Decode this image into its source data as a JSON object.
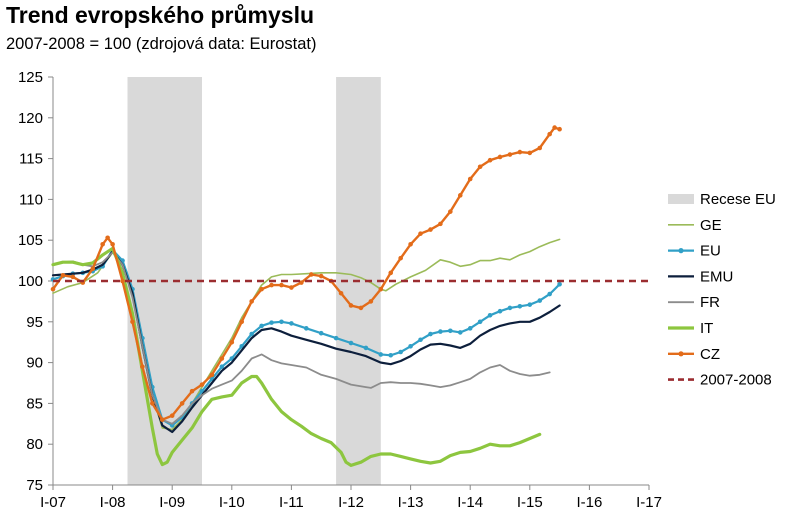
{
  "chart_data": {
    "type": "line",
    "title": "Trend evropského průmyslu",
    "subtitle": "2007-2008 = 100 (zdrojová data: Eurostat)",
    "xlabel": "",
    "ylabel": "",
    "ylim": [
      75,
      125
    ],
    "yticks": [
      75,
      80,
      85,
      90,
      95,
      100,
      105,
      110,
      115,
      120,
      125
    ],
    "xlim": [
      0,
      120
    ],
    "xticks": [
      {
        "x": 0,
        "label": "I-07"
      },
      {
        "x": 12,
        "label": "I-08"
      },
      {
        "x": 24,
        "label": "I-09"
      },
      {
        "x": 36,
        "label": "I-10"
      },
      {
        "x": 48,
        "label": "I-11"
      },
      {
        "x": 60,
        "label": "I-12"
      },
      {
        "x": 72,
        "label": "I-13"
      },
      {
        "x": 84,
        "label": "I-14"
      },
      {
        "x": 96,
        "label": "I-15"
      },
      {
        "x": 108,
        "label": "I-16"
      },
      {
        "x": 120,
        "label": "I-17"
      }
    ],
    "x_units": "months since I-07",
    "legend_position": "right",
    "grid": false,
    "recessions": {
      "name": "Recese EU",
      "color": "#d9d9d9",
      "periods": [
        [
          15,
          30
        ],
        [
          57,
          66
        ]
      ]
    },
    "reference": {
      "name": "2007-2008",
      "value": 100,
      "color": "#9b2d30"
    },
    "series": [
      {
        "name": "GE",
        "color": "#9bbb59",
        "width": 1.6,
        "marker": false,
        "points": [
          [
            0,
            98.5
          ],
          [
            3,
            99.3
          ],
          [
            6,
            99.8
          ],
          [
            9,
            101
          ],
          [
            12,
            103.5
          ],
          [
            14,
            102.5
          ],
          [
            16,
            98
          ],
          [
            18,
            92
          ],
          [
            20,
            86
          ],
          [
            22,
            82
          ],
          [
            24,
            81.8
          ],
          [
            26,
            83
          ],
          [
            28,
            85
          ],
          [
            30,
            87
          ],
          [
            32,
            89
          ],
          [
            34,
            91
          ],
          [
            36,
            93
          ],
          [
            38,
            95.5
          ],
          [
            40,
            97.5
          ],
          [
            42,
            99.5
          ],
          [
            44,
            100.5
          ],
          [
            46,
            100.8
          ],
          [
            48,
            100.8
          ],
          [
            51,
            100.9
          ],
          [
            54,
            101
          ],
          [
            57,
            101
          ],
          [
            60,
            100.8
          ],
          [
            62,
            100.4
          ],
          [
            64,
            99.8
          ],
          [
            66,
            99
          ],
          [
            67,
            98.8
          ],
          [
            69,
            99.6
          ],
          [
            72,
            100.5
          ],
          [
            75,
            101.3
          ],
          [
            78,
            102.6
          ],
          [
            80,
            102.3
          ],
          [
            82,
            101.8
          ],
          [
            84,
            102
          ],
          [
            86,
            102.5
          ],
          [
            88,
            102.5
          ],
          [
            90,
            102.8
          ],
          [
            92,
            102.6
          ],
          [
            94,
            103.2
          ],
          [
            96,
            103.6
          ],
          [
            98,
            104.2
          ],
          [
            100,
            104.7
          ],
          [
            102,
            105.1
          ]
        ]
      },
      {
        "name": "EU",
        "color": "#31a0c7",
        "width": 2.2,
        "marker": true,
        "points": [
          [
            0,
            100.2
          ],
          [
            2,
            100.6
          ],
          [
            4,
            100.9
          ],
          [
            6,
            101
          ],
          [
            8,
            101.2
          ],
          [
            10,
            101.8
          ],
          [
            12,
            103.8
          ],
          [
            14,
            102.5
          ],
          [
            16,
            99
          ],
          [
            18,
            93
          ],
          [
            20,
            87
          ],
          [
            22,
            83
          ],
          [
            24,
            82.3
          ],
          [
            26,
            83.3
          ],
          [
            28,
            85
          ],
          [
            30,
            86.5
          ],
          [
            32,
            88
          ],
          [
            34,
            89.5
          ],
          [
            36,
            90.5
          ],
          [
            38,
            92
          ],
          [
            40,
            93.5
          ],
          [
            42,
            94.5
          ],
          [
            44,
            94.9
          ],
          [
            46,
            95
          ],
          [
            48,
            94.8
          ],
          [
            51,
            94.2
          ],
          [
            54,
            93.6
          ],
          [
            57,
            93
          ],
          [
            60,
            92.4
          ],
          [
            63,
            91.8
          ],
          [
            66,
            91
          ],
          [
            68,
            90.9
          ],
          [
            70,
            91.3
          ],
          [
            72,
            92
          ],
          [
            74,
            92.8
          ],
          [
            76,
            93.5
          ],
          [
            78,
            93.8
          ],
          [
            80,
            93.9
          ],
          [
            82,
            93.7
          ],
          [
            84,
            94.2
          ],
          [
            86,
            95
          ],
          [
            88,
            95.8
          ],
          [
            90,
            96.3
          ],
          [
            92,
            96.7
          ],
          [
            94,
            96.9
          ],
          [
            96,
            97.1
          ],
          [
            98,
            97.6
          ],
          [
            100,
            98.4
          ],
          [
            102,
            99.6
          ]
        ]
      },
      {
        "name": "EMU",
        "color": "#0d1f3c",
        "width": 2.2,
        "marker": false,
        "points": [
          [
            0,
            100.7
          ],
          [
            2,
            100.8
          ],
          [
            4,
            100.9
          ],
          [
            6,
            101
          ],
          [
            8,
            101.4
          ],
          [
            10,
            102
          ],
          [
            12,
            103.6
          ],
          [
            14,
            102
          ],
          [
            16,
            98.5
          ],
          [
            18,
            92
          ],
          [
            20,
            86
          ],
          [
            22,
            82.3
          ],
          [
            24,
            81.5
          ],
          [
            26,
            82.8
          ],
          [
            28,
            84.5
          ],
          [
            30,
            86
          ],
          [
            32,
            87.5
          ],
          [
            34,
            89
          ],
          [
            36,
            90
          ],
          [
            38,
            91.5
          ],
          [
            40,
            93
          ],
          [
            42,
            94
          ],
          [
            44,
            94.2
          ],
          [
            46,
            93.8
          ],
          [
            48,
            93.3
          ],
          [
            51,
            92.8
          ],
          [
            54,
            92.3
          ],
          [
            57,
            91.7
          ],
          [
            60,
            91.3
          ],
          [
            63,
            90.8
          ],
          [
            66,
            90
          ],
          [
            68,
            89.8
          ],
          [
            70,
            90.2
          ],
          [
            72,
            90.8
          ],
          [
            74,
            91.6
          ],
          [
            76,
            92.2
          ],
          [
            78,
            92.3
          ],
          [
            80,
            92.1
          ],
          [
            82,
            91.8
          ],
          [
            84,
            92.3
          ],
          [
            86,
            93.3
          ],
          [
            88,
            94
          ],
          [
            90,
            94.5
          ],
          [
            92,
            94.8
          ],
          [
            94,
            95
          ],
          [
            96,
            95
          ],
          [
            98,
            95.5
          ],
          [
            100,
            96.2
          ],
          [
            102,
            97
          ]
        ]
      },
      {
        "name": "FR",
        "color": "#8c8c8c",
        "width": 1.8,
        "marker": false,
        "points": [
          [
            0,
            102
          ],
          [
            2,
            102.3
          ],
          [
            4,
            102.4
          ],
          [
            6,
            102
          ],
          [
            8,
            101.8
          ],
          [
            10,
            102.3
          ],
          [
            12,
            103.5
          ],
          [
            14,
            102
          ],
          [
            16,
            98
          ],
          [
            18,
            92
          ],
          [
            20,
            86
          ],
          [
            22,
            83
          ],
          [
            24,
            82.5
          ],
          [
            26,
            83.5
          ],
          [
            28,
            85
          ],
          [
            30,
            86
          ],
          [
            32,
            86.8
          ],
          [
            34,
            87.3
          ],
          [
            36,
            87.8
          ],
          [
            38,
            89
          ],
          [
            40,
            90.5
          ],
          [
            42,
            91
          ],
          [
            44,
            90.3
          ],
          [
            46,
            89.9
          ],
          [
            48,
            89.7
          ],
          [
            51,
            89.4
          ],
          [
            54,
            88.5
          ],
          [
            57,
            88
          ],
          [
            60,
            87.3
          ],
          [
            63,
            87
          ],
          [
            64,
            86.9
          ],
          [
            66,
            87.5
          ],
          [
            68,
            87.6
          ],
          [
            70,
            87.5
          ],
          [
            72,
            87.5
          ],
          [
            74,
            87.4
          ],
          [
            76,
            87.2
          ],
          [
            78,
            87
          ],
          [
            80,
            87.2
          ],
          [
            82,
            87.6
          ],
          [
            84,
            88
          ],
          [
            86,
            88.8
          ],
          [
            88,
            89.4
          ],
          [
            90,
            89.7
          ],
          [
            92,
            89
          ],
          [
            94,
            88.6
          ],
          [
            96,
            88.4
          ],
          [
            98,
            88.5
          ],
          [
            100,
            88.8
          ]
        ]
      },
      {
        "name": "IT",
        "color": "#8dc63f",
        "width": 3.2,
        "marker": false,
        "points": [
          [
            0,
            102
          ],
          [
            2,
            102.3
          ],
          [
            4,
            102.3
          ],
          [
            6,
            102
          ],
          [
            8,
            102.2
          ],
          [
            10,
            103.2
          ],
          [
            12,
            104
          ],
          [
            14,
            101
          ],
          [
            16,
            96
          ],
          [
            18,
            89
          ],
          [
            20,
            82
          ],
          [
            21,
            78.8
          ],
          [
            22,
            77.5
          ],
          [
            23,
            77.8
          ],
          [
            24,
            79
          ],
          [
            26,
            80.5
          ],
          [
            28,
            82
          ],
          [
            30,
            84
          ],
          [
            32,
            85.5
          ],
          [
            34,
            85.8
          ],
          [
            36,
            86
          ],
          [
            38,
            87.5
          ],
          [
            40,
            88.3
          ],
          [
            41,
            88.3
          ],
          [
            42,
            87.5
          ],
          [
            44,
            85.5
          ],
          [
            46,
            84
          ],
          [
            48,
            83
          ],
          [
            50,
            82.2
          ],
          [
            52,
            81.3
          ],
          [
            54,
            80.7
          ],
          [
            56,
            80.2
          ],
          [
            58,
            79
          ],
          [
            59,
            77.8
          ],
          [
            60,
            77.4
          ],
          [
            62,
            77.8
          ],
          [
            64,
            78.5
          ],
          [
            66,
            78.8
          ],
          [
            68,
            78.8
          ],
          [
            70,
            78.5
          ],
          [
            72,
            78.2
          ],
          [
            74,
            77.9
          ],
          [
            76,
            77.7
          ],
          [
            78,
            77.9
          ],
          [
            80,
            78.6
          ],
          [
            82,
            79
          ],
          [
            84,
            79.1
          ],
          [
            86,
            79.5
          ],
          [
            88,
            80
          ],
          [
            90,
            79.8
          ],
          [
            92,
            79.8
          ],
          [
            94,
            80.2
          ],
          [
            96,
            80.7
          ],
          [
            98,
            81.2
          ]
        ]
      },
      {
        "name": "CZ",
        "color": "#e36c1a",
        "width": 2.4,
        "marker": true,
        "points": [
          [
            0,
            99
          ],
          [
            2,
            100.7
          ],
          [
            4,
            100.5
          ],
          [
            6,
            99.8
          ],
          [
            8,
            101.5
          ],
          [
            10,
            104.5
          ],
          [
            11,
            105.3
          ],
          [
            12,
            104.5
          ],
          [
            14,
            100
          ],
          [
            16,
            95
          ],
          [
            18,
            89.5
          ],
          [
            20,
            85
          ],
          [
            22,
            83
          ],
          [
            24,
            83.5
          ],
          [
            26,
            85
          ],
          [
            28,
            86.5
          ],
          [
            30,
            87.3
          ],
          [
            32,
            88.5
          ],
          [
            34,
            90.5
          ],
          [
            36,
            92.5
          ],
          [
            38,
            95
          ],
          [
            40,
            97.5
          ],
          [
            42,
            99
          ],
          [
            44,
            99.5
          ],
          [
            46,
            99.5
          ],
          [
            48,
            99.2
          ],
          [
            50,
            99.8
          ],
          [
            52,
            100.8
          ],
          [
            54,
            100.6
          ],
          [
            56,
            100
          ],
          [
            58,
            98.5
          ],
          [
            60,
            97
          ],
          [
            62,
            96.7
          ],
          [
            64,
            97.5
          ],
          [
            66,
            99
          ],
          [
            68,
            101
          ],
          [
            70,
            102.8
          ],
          [
            72,
            104.5
          ],
          [
            74,
            105.8
          ],
          [
            76,
            106.3
          ],
          [
            78,
            107
          ],
          [
            80,
            108.5
          ],
          [
            82,
            110.5
          ],
          [
            84,
            112.5
          ],
          [
            86,
            114
          ],
          [
            88,
            114.8
          ],
          [
            90,
            115.2
          ],
          [
            92,
            115.5
          ],
          [
            94,
            115.8
          ],
          [
            96,
            115.7
          ],
          [
            98,
            116.3
          ],
          [
            100,
            118
          ],
          [
            101,
            118.8
          ],
          [
            102,
            118.6
          ]
        ]
      }
    ]
  }
}
